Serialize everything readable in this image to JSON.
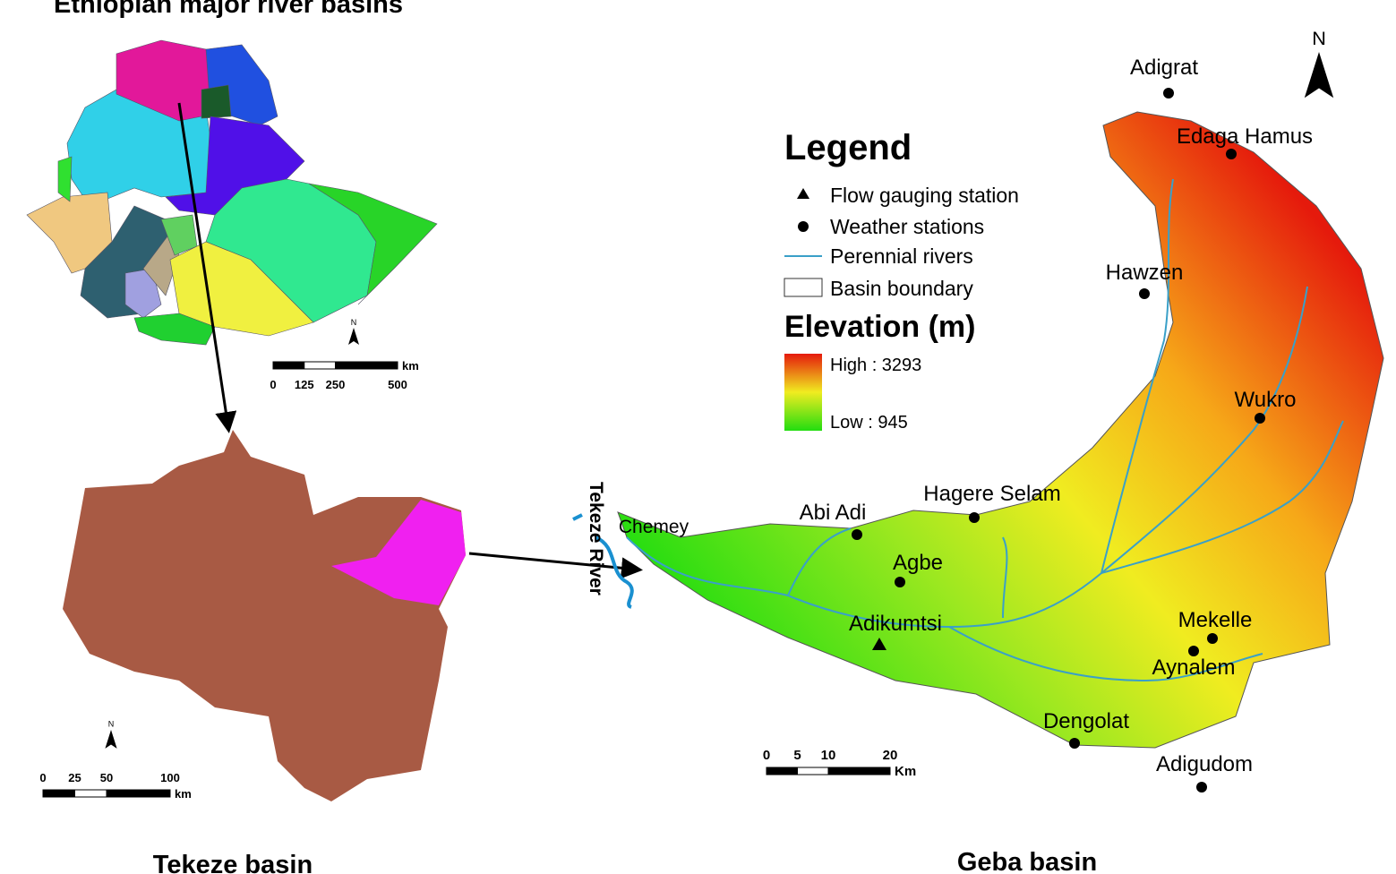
{
  "overview": {
    "title": "Ethiopian major river basins",
    "north": "N",
    "scale": {
      "ticks": [
        0,
        125,
        250,
        500
      ],
      "unit": "km"
    }
  },
  "tekeze": {
    "title": "Tekeze basin",
    "north": "N",
    "scale": {
      "ticks": [
        0,
        25,
        50,
        100
      ],
      "unit": "km"
    }
  },
  "geba": {
    "title": "Geba basin",
    "north": "N",
    "river": "Tekeze River",
    "outlet": "Chemey",
    "stations": [
      {
        "label": "Adigrat"
      },
      {
        "label": "Edaga Hamus"
      },
      {
        "label": "Hawzen"
      },
      {
        "label": "Wukro"
      },
      {
        "label": "Hagere Selam"
      },
      {
        "label": "Abi Adi"
      },
      {
        "label": "Agbe"
      },
      {
        "label": "Adikumtsi"
      },
      {
        "label": "Mekelle"
      },
      {
        "label": "Aynalem"
      },
      {
        "label": "Dengolat"
      },
      {
        "label": "Adigudom"
      }
    ],
    "scale": {
      "ticks": [
        0,
        5,
        10,
        20
      ],
      "unit": "Km"
    }
  },
  "legend": {
    "title": "Legend",
    "items": [
      "Flow gauging station",
      "Weather stations",
      "Perennial rivers",
      "Basin boundary"
    ],
    "elevation": {
      "title": "Elevation (m)",
      "high": "High : 3293",
      "low": "Low : 945"
    }
  }
}
